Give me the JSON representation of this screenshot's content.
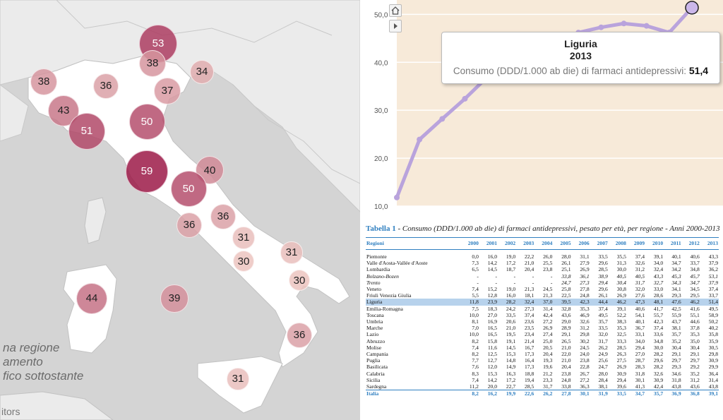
{
  "map": {
    "legend_lines": [
      "na regione",
      "amento",
      "fico sottostante"
    ],
    "attribution": "itors",
    "bubbles": [
      {
        "label": "53",
        "value": 53
      },
      {
        "label": "38",
        "value": 38
      },
      {
        "label": "34",
        "value": 34
      },
      {
        "label": "38",
        "value": 38
      },
      {
        "label": "36",
        "value": 36
      },
      {
        "label": "37",
        "value": 37
      },
      {
        "label": "43",
        "value": 43
      },
      {
        "label": "51",
        "value": 51
      },
      {
        "label": "50",
        "value": 50
      },
      {
        "label": "59",
        "value": 59
      },
      {
        "label": "40",
        "value": 40
      },
      {
        "label": "50",
        "value": 50
      },
      {
        "label": "36",
        "value": 36
      },
      {
        "label": "36",
        "value": 36
      },
      {
        "label": "31",
        "value": 31
      },
      {
        "label": "30",
        "value": 30
      },
      {
        "label": "31",
        "value": 31
      },
      {
        "label": "30",
        "value": 30
      },
      {
        "label": "44",
        "value": 44
      },
      {
        "label": "39",
        "value": 39
      },
      {
        "label": "36",
        "value": 36
      },
      {
        "label": "31",
        "value": 31
      }
    ]
  },
  "colors": {
    "line": "#b9a3dc",
    "chart_bg": "#f7ead9",
    "accent_blue": "#2f7fc0",
    "highlight_row": "#b7d2ec"
  },
  "chart_data": [
    {
      "type": "line",
      "ylim": [
        10,
        53
      ],
      "y_ticks": [
        "10,0",
        "20,0",
        "30,0",
        "40,0",
        "50,0"
      ],
      "x": [
        2000,
        2001,
        2002,
        2003,
        2004,
        2005,
        2006,
        2007,
        2008,
        2009,
        2010,
        2011,
        2012,
        2013
      ],
      "series": [
        {
          "values": [
            11.8,
            23.9,
            28.2,
            32.4,
            37.0,
            39.5,
            42.3,
            44.4,
            46.2,
            47.3,
            48.1,
            47.6,
            46.2,
            51.4
          ]
        }
      ],
      "tooltip": {
        "region": "Liguria",
        "year": "2013",
        "measure": "Consumo (DDD/1.000 ab die) di farmaci antidepressivi:",
        "value": "51,4"
      }
    },
    {
      "type": "table",
      "caption_label": "Tabella 1",
      "caption_text": " - Consumo (DDD/1.000 ab die) di farmaci antidepressivi, pesato per età, per regione - Anni 2000-2013",
      "columns": [
        "Regioni",
        "2000",
        "2001",
        "2002",
        "2003",
        "2004",
        "2005",
        "2006",
        "2007",
        "2008",
        "2009",
        "2010",
        "2011",
        "2012",
        "2013"
      ],
      "rows": [
        {
          "name": "Piemonte",
          "values": [
            "0,0",
            "16,0",
            "19,0",
            "22,2",
            "26,0",
            "28,0",
            "31,1",
            "33,5",
            "35,5",
            "37,4",
            "39,1",
            "40,1",
            "40,6",
            "43,3"
          ]
        },
        {
          "name": "Valle d'Aosta-Vallée d'Aoste",
          "values": [
            "7,3",
            "14,2",
            "17,2",
            "21,0",
            "25,5",
            "26,1",
            "27,9",
            "29,6",
            "31,3",
            "32,6",
            "34,0",
            "34,7",
            "33,7",
            "37,9"
          ]
        },
        {
          "name": "Lombardia",
          "values": [
            "6,5",
            "14,5",
            "18,7",
            "20,4",
            "23,8",
            "25,1",
            "26,9",
            "28,5",
            "30,0",
            "31,2",
            "32,4",
            "34,2",
            "34,8",
            "36,2"
          ]
        },
        {
          "name": "Bolzano-Bozen",
          "italic": true,
          "values": [
            "-",
            "-",
            "-",
            "-",
            "-",
            "33,8",
            "36,1",
            "38,9",
            "40,5",
            "40,5",
            "43,3",
            "45,3",
            "45,7",
            "53,1"
          ]
        },
        {
          "name": "Trento",
          "italic": true,
          "values": [
            "-",
            "-",
            "-",
            "-",
            "-",
            "24,7",
            "27,3",
            "29,4",
            "30,4",
            "31,7",
            "32,7",
            "34,3",
            "34,7",
            "37,9"
          ]
        },
        {
          "name": "Veneto",
          "values": [
            "7,4",
            "15,2",
            "19,0",
            "21,3",
            "24,5",
            "25,8",
            "27,8",
            "29,6",
            "30,8",
            "32,0",
            "33,0",
            "34,1",
            "34,5",
            "37,4"
          ]
        },
        {
          "name": "Friuli Venezia Giulia",
          "values": [
            "5,5",
            "12,8",
            "16,0",
            "18,1",
            "21,3",
            "22,5",
            "24,8",
            "26,1",
            "26,9",
            "27,6",
            "28,6",
            "29,3",
            "29,5",
            "33,7"
          ]
        },
        {
          "name": "Liguria",
          "highlight": true,
          "values": [
            "11,8",
            "23,9",
            "28,2",
            "32,4",
            "37,0",
            "39,5",
            "42,3",
            "44,4",
            "46,2",
            "47,3",
            "48,1",
            "47,6",
            "46,2",
            "51,4"
          ]
        },
        {
          "name": "Emilia-Romagna",
          "values": [
            "7,5",
            "18,3",
            "24,2",
            "27,3",
            "31,4",
            "32,8",
            "35,3",
            "37,4",
            "39,1",
            "40,6",
            "41,7",
            "42,5",
            "41,6",
            "49,5"
          ]
        },
        {
          "name": "Toscana",
          "values": [
            "10,0",
            "27,0",
            "33,5",
            "37,4",
            "42,4",
            "43,6",
            "46,9",
            "49,5",
            "52,2",
            "54,1",
            "55,7",
            "55,9",
            "55,1",
            "58,9"
          ]
        },
        {
          "name": "Umbria",
          "values": [
            "8,1",
            "16,9",
            "20,6",
            "23,6",
            "27,2",
            "29,0",
            "32,6",
            "35,7",
            "38,3",
            "40,1",
            "42,3",
            "43,7",
            "44,6",
            "50,2"
          ]
        },
        {
          "name": "Marche",
          "values": [
            "7,0",
            "16,5",
            "21,0",
            "23,5",
            "26,9",
            "28,9",
            "31,2",
            "33,5",
            "35,3",
            "36,7",
            "37,4",
            "38,1",
            "37,8",
            "40,2"
          ]
        },
        {
          "name": "Lazio",
          "values": [
            "10,0",
            "16,5",
            "19,5",
            "23,4",
            "27,4",
            "29,1",
            "29,8",
            "32,0",
            "32,5",
            "33,1",
            "33,6",
            "35,7",
            "35,3",
            "35,8"
          ]
        },
        {
          "name": "Abruzzo",
          "values": [
            "8,2",
            "15,8",
            "19,1",
            "21,4",
            "25,0",
            "26,5",
            "30,2",
            "31,7",
            "33,3",
            "34,0",
            "34,8",
            "35,2",
            "35,0",
            "35,9"
          ]
        },
        {
          "name": "Molise",
          "values": [
            "7,4",
            "11,6",
            "14,5",
            "16,7",
            "20,5",
            "21,0",
            "24,5",
            "26,2",
            "28,5",
            "29,4",
            "30,0",
            "30,4",
            "30,4",
            "30,5"
          ]
        },
        {
          "name": "Campania",
          "values": [
            "8,2",
            "12,5",
            "15,3",
            "17,3",
            "20,4",
            "22,0",
            "24,0",
            "24,9",
            "26,3",
            "27,0",
            "28,2",
            "29,1",
            "29,1",
            "29,8"
          ]
        },
        {
          "name": "Puglia",
          "values": [
            "7,7",
            "12,7",
            "14,8",
            "16,4",
            "19,3",
            "21,0",
            "23,8",
            "25,6",
            "27,5",
            "28,7",
            "29,6",
            "29,7",
            "29,7",
            "30,9"
          ]
        },
        {
          "name": "Basilicata",
          "values": [
            "7,6",
            "12,0",
            "14,9",
            "17,3",
            "19,6",
            "20,4",
            "22,8",
            "24,7",
            "26,9",
            "28,3",
            "28,2",
            "29,3",
            "29,2",
            "29,9"
          ]
        },
        {
          "name": "Calabria",
          "values": [
            "8,3",
            "15,3",
            "16,3",
            "18,8",
            "21,2",
            "23,8",
            "26,7",
            "28,0",
            "30,9",
            "31,8",
            "32,6",
            "34,6",
            "35,2",
            "36,4"
          ]
        },
        {
          "name": "Sicilia",
          "values": [
            "7,4",
            "14,2",
            "17,2",
            "19,4",
            "23,3",
            "24,8",
            "27,2",
            "28,4",
            "29,4",
            "30,1",
            "30,9",
            "31,8",
            "31,2",
            "31,4"
          ]
        },
        {
          "name": "Sardegna",
          "values": [
            "11,2",
            "20,0",
            "22,7",
            "28,5",
            "31,7",
            "33,8",
            "36,3",
            "38,1",
            "39,6",
            "41,3",
            "42,4",
            "43,8",
            "43,6",
            "43,8"
          ]
        },
        {
          "name": "Italia",
          "total": true,
          "values": [
            "8,2",
            "16,2",
            "19,9",
            "22,6",
            "26,2",
            "27,8",
            "30,1",
            "31,9",
            "33,5",
            "34,7",
            "35,7",
            "36,9",
            "36,8",
            "39,1"
          ]
        }
      ]
    }
  ]
}
